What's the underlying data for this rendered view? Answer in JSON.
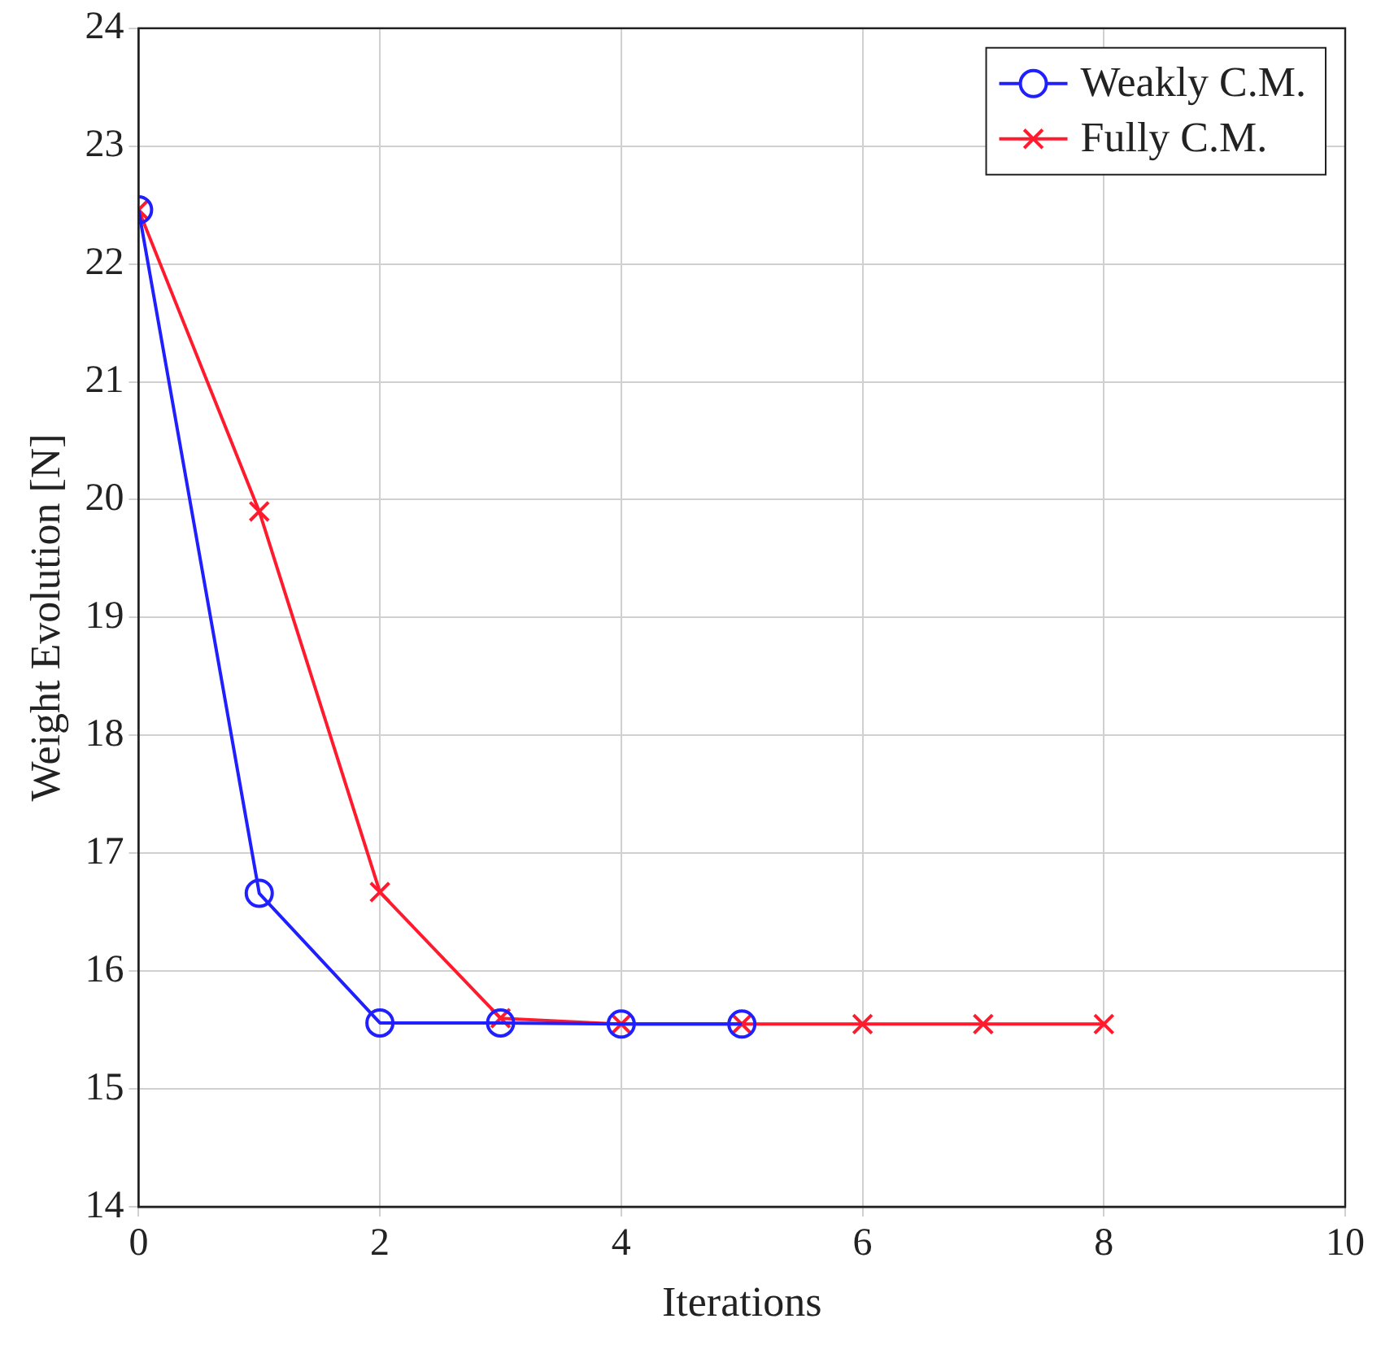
{
  "chart_data": {
    "type": "line",
    "xlabel": "Iterations",
    "ylabel": "Weight Evolution [N]",
    "xlim": [
      0,
      10
    ],
    "xticks": [
      0,
      2,
      4,
      6,
      8,
      10
    ],
    "ylim": [
      14,
      24
    ],
    "yticks": [
      14,
      15,
      16,
      17,
      18,
      19,
      20,
      21,
      22,
      23,
      24
    ],
    "grid": true,
    "legend": "top right",
    "line_style": "solid",
    "series": [
      {
        "name": "Weakly C.M.",
        "color": "#1f1fff",
        "marker": "circle",
        "x": [
          0,
          1,
          2,
          3,
          4,
          5
        ],
        "values": [
          22.46,
          16.66,
          15.56,
          15.56,
          15.55,
          15.55
        ]
      },
      {
        "name": "Fully C.M.",
        "color": "#ff1a2e",
        "marker": "cross",
        "x": [
          0,
          1,
          2,
          3,
          4,
          5,
          6,
          7,
          8
        ],
        "values": [
          22.46,
          19.9,
          16.67,
          15.6,
          15.55,
          15.55,
          15.55,
          15.55,
          15.55
        ]
      }
    ]
  }
}
